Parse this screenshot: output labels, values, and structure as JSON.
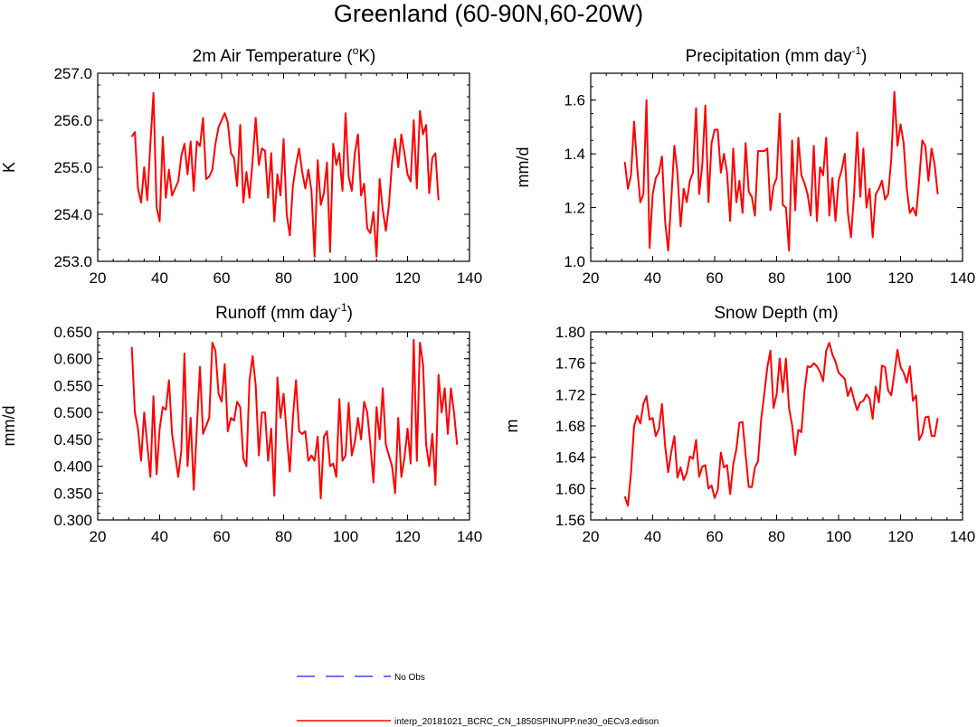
{
  "title": "Greenland (60-90N,60-20W)",
  "legend": [
    {
      "label": "No Obs",
      "color": "#4040ff",
      "dashed": true
    },
    {
      "label": "interp_20181021_BCRC_CN_1850SPINUPP.ne30_oECv3.edison",
      "color": "#ff0000",
      "dashed": false
    }
  ],
  "chart_data": [
    {
      "type": "line",
      "title": "2m Air Temperature",
      "unit": "oK",
      "ylabel": "K",
      "xlim": [
        20,
        140
      ],
      "ylim": [
        253.0,
        257.0
      ],
      "xticks": [
        20,
        40,
        60,
        80,
        100,
        120,
        140
      ],
      "yticks": [
        253.0,
        254.0,
        255.0,
        256.0,
        257.0
      ],
      "ytick_labels": [
        "253.0",
        "254.0",
        "255.0",
        "256.0",
        "257.0"
      ],
      "series": [
        {
          "name": "interp_20181021_BCRC_CN_1850SPINUPP.ne30_oECv3.edison",
          "color": "#ff0000",
          "x_start": 31,
          "x_step": 1,
          "values": [
            255.65,
            255.75,
            254.55,
            254.25,
            255.0,
            254.3,
            255.5,
            256.58,
            254.15,
            253.85,
            255.65,
            254.35,
            254.95,
            254.4,
            254.55,
            254.7,
            255.25,
            255.5,
            254.85,
            255.55,
            254.5,
            255.55,
            255.45,
            256.05,
            254.75,
            254.8,
            254.95,
            255.5,
            255.85,
            256.0,
            256.15,
            255.95,
            255.3,
            255.2,
            254.6,
            255.9,
            254.25,
            254.9,
            254.35,
            255.15,
            256.05,
            255.05,
            255.4,
            255.35,
            254.35,
            255.3,
            253.85,
            254.85,
            254.4,
            255.6,
            254.0,
            253.55,
            254.6,
            255.05,
            255.4,
            254.9,
            254.55,
            254.95,
            254.5,
            253.1,
            255.15,
            254.2,
            254.45,
            255.1,
            253.2,
            255.5,
            255.05,
            255.3,
            254.5,
            256.15,
            254.8,
            254.5,
            255.3,
            255.7,
            254.4,
            254.65,
            253.7,
            253.6,
            254.05,
            253.1,
            254.75,
            254.1,
            253.65,
            254.2,
            255.1,
            255.6,
            255.0,
            255.7,
            255.3,
            254.85,
            254.7,
            256.0,
            254.55,
            256.2,
            255.7,
            255.9,
            254.45,
            255.2,
            255.3,
            254.3
          ]
        }
      ]
    },
    {
      "type": "line",
      "title": "Precipitation",
      "unit": "mm day-1",
      "ylabel": "mm/d",
      "xlim": [
        20,
        140
      ],
      "ylim": [
        1.0,
        1.7
      ],
      "xticks": [
        20,
        40,
        60,
        80,
        100,
        120,
        140
      ],
      "yticks": [
        1.0,
        1.2,
        1.4,
        1.6
      ],
      "ytick_labels": [
        "1.0",
        "1.2",
        "1.4",
        "1.6"
      ],
      "series": [
        {
          "name": "interp_20181021_BCRC_CN_1850SPINUPP.ne30_oECv3.edison",
          "color": "#ff0000",
          "x_start": 31,
          "x_step": 1,
          "values": [
            1.37,
            1.27,
            1.32,
            1.52,
            1.35,
            1.22,
            1.25,
            1.6,
            1.05,
            1.25,
            1.31,
            1.33,
            1.39,
            1.15,
            1.04,
            1.23,
            1.43,
            1.33,
            1.13,
            1.27,
            1.22,
            1.3,
            1.33,
            1.57,
            1.25,
            1.36,
            1.58,
            1.22,
            1.44,
            1.49,
            1.49,
            1.33,
            1.4,
            1.33,
            1.15,
            1.42,
            1.22,
            1.3,
            1.18,
            1.44,
            1.26,
            1.24,
            1.17,
            1.41,
            1.41,
            1.41,
            1.42,
            1.19,
            1.28,
            1.31,
            1.55,
            1.21,
            1.2,
            1.04,
            1.45,
            1.19,
            1.46,
            1.32,
            1.29,
            1.25,
            1.17,
            1.43,
            1.15,
            1.35,
            1.32,
            1.46,
            1.17,
            1.31,
            1.15,
            1.3,
            1.34,
            1.4,
            1.18,
            1.09,
            1.25,
            1.48,
            1.24,
            1.42,
            1.2,
            1.27,
            1.09,
            1.25,
            1.27,
            1.3,
            1.23,
            1.25,
            1.38,
            1.63,
            1.43,
            1.51,
            1.44,
            1.27,
            1.18,
            1.2,
            1.17,
            1.3,
            1.45,
            1.43,
            1.3,
            1.42,
            1.36,
            1.25
          ]
        }
      ]
    },
    {
      "type": "line",
      "title": "Runoff",
      "unit": "mm day-1",
      "ylabel": "mm/d",
      "xlim": [
        20,
        140
      ],
      "ylim": [
        0.3,
        0.65
      ],
      "xticks": [
        20,
        40,
        60,
        80,
        100,
        120,
        140
      ],
      "yticks": [
        0.3,
        0.35,
        0.4,
        0.45,
        0.5,
        0.55,
        0.6,
        0.65
      ],
      "ytick_labels": [
        "0.300",
        "0.350",
        "0.400",
        "0.450",
        "0.500",
        "0.550",
        "0.600",
        "0.650"
      ],
      "series": [
        {
          "name": "interp_20181021_BCRC_CN_1850SPINUPP.ne30_oECv3.edison",
          "color": "#ff0000",
          "x_start": 31,
          "x_step": 1,
          "values": [
            0.622,
            0.5,
            0.47,
            0.41,
            0.5,
            0.44,
            0.38,
            0.53,
            0.385,
            0.47,
            0.51,
            0.505,
            0.56,
            0.46,
            0.42,
            0.38,
            0.43,
            0.61,
            0.4,
            0.49,
            0.356,
            0.47,
            0.585,
            0.46,
            0.475,
            0.49,
            0.63,
            0.615,
            0.535,
            0.52,
            0.59,
            0.465,
            0.49,
            0.485,
            0.52,
            0.51,
            0.415,
            0.4,
            0.56,
            0.605,
            0.55,
            0.42,
            0.5,
            0.5,
            0.41,
            0.47,
            0.345,
            0.565,
            0.49,
            0.535,
            0.46,
            0.39,
            0.49,
            0.56,
            0.465,
            0.46,
            0.465,
            0.41,
            0.42,
            0.41,
            0.455,
            0.34,
            0.455,
            0.465,
            0.4,
            0.405,
            0.38,
            0.525,
            0.41,
            0.42,
            0.518,
            0.42,
            0.445,
            0.49,
            0.45,
            0.52,
            0.5,
            0.44,
            0.37,
            0.51,
            0.45,
            0.545,
            0.44,
            0.42,
            0.4,
            0.35,
            0.49,
            0.38,
            0.415,
            0.47,
            0.405,
            0.635,
            0.41,
            0.63,
            0.59,
            0.44,
            0.4,
            0.46,
            0.365,
            0.57,
            0.5,
            0.545,
            0.46,
            0.545,
            0.5,
            0.44
          ]
        }
      ]
    },
    {
      "type": "line",
      "title": "Snow Depth (m)",
      "unit": "",
      "ylabel": "m",
      "xlim": [
        20,
        140
      ],
      "ylim": [
        1.56,
        1.8
      ],
      "xticks": [
        20,
        40,
        60,
        80,
        100,
        120,
        140
      ],
      "yticks": [
        1.56,
        1.6,
        1.64,
        1.68,
        1.72,
        1.76,
        1.8
      ],
      "ytick_labels": [
        "1.56",
        "1.60",
        "1.64",
        "1.68",
        "1.72",
        "1.76",
        "1.80"
      ],
      "series": [
        {
          "name": "interp_20181021_BCRC_CN_1850SPINUPP.ne30_oECv3.edison",
          "color": "#ff0000",
          "x_start": 31,
          "x_step": 1,
          "values": [
            1.59,
            1.578,
            1.62,
            1.68,
            1.693,
            1.683,
            1.708,
            1.718,
            1.688,
            1.69,
            1.667,
            1.676,
            1.708,
            1.655,
            1.621,
            1.647,
            1.667,
            1.614,
            1.627,
            1.611,
            1.62,
            1.641,
            1.638,
            1.662,
            1.615,
            1.628,
            1.63,
            1.6,
            1.604,
            1.588,
            1.598,
            1.646,
            1.627,
            1.63,
            1.593,
            1.631,
            1.65,
            1.684,
            1.685,
            1.643,
            1.602,
            1.602,
            1.627,
            1.635,
            1.688,
            1.72,
            1.755,
            1.776,
            1.703,
            1.72,
            1.766,
            1.723,
            1.766,
            1.703,
            1.681,
            1.643,
            1.675,
            1.672,
            1.725,
            1.756,
            1.755,
            1.76,
            1.756,
            1.749,
            1.737,
            1.776,
            1.786,
            1.771,
            1.762,
            1.748,
            1.744,
            1.74,
            1.718,
            1.729,
            1.713,
            1.7,
            1.71,
            1.712,
            1.72,
            1.715,
            1.689,
            1.73,
            1.71,
            1.757,
            1.755,
            1.725,
            1.719,
            1.747,
            1.777,
            1.755,
            1.748,
            1.735,
            1.756,
            1.712,
            1.719,
            1.662,
            1.67,
            1.691,
            1.692,
            1.667,
            1.667,
            1.69
          ]
        }
      ]
    }
  ]
}
